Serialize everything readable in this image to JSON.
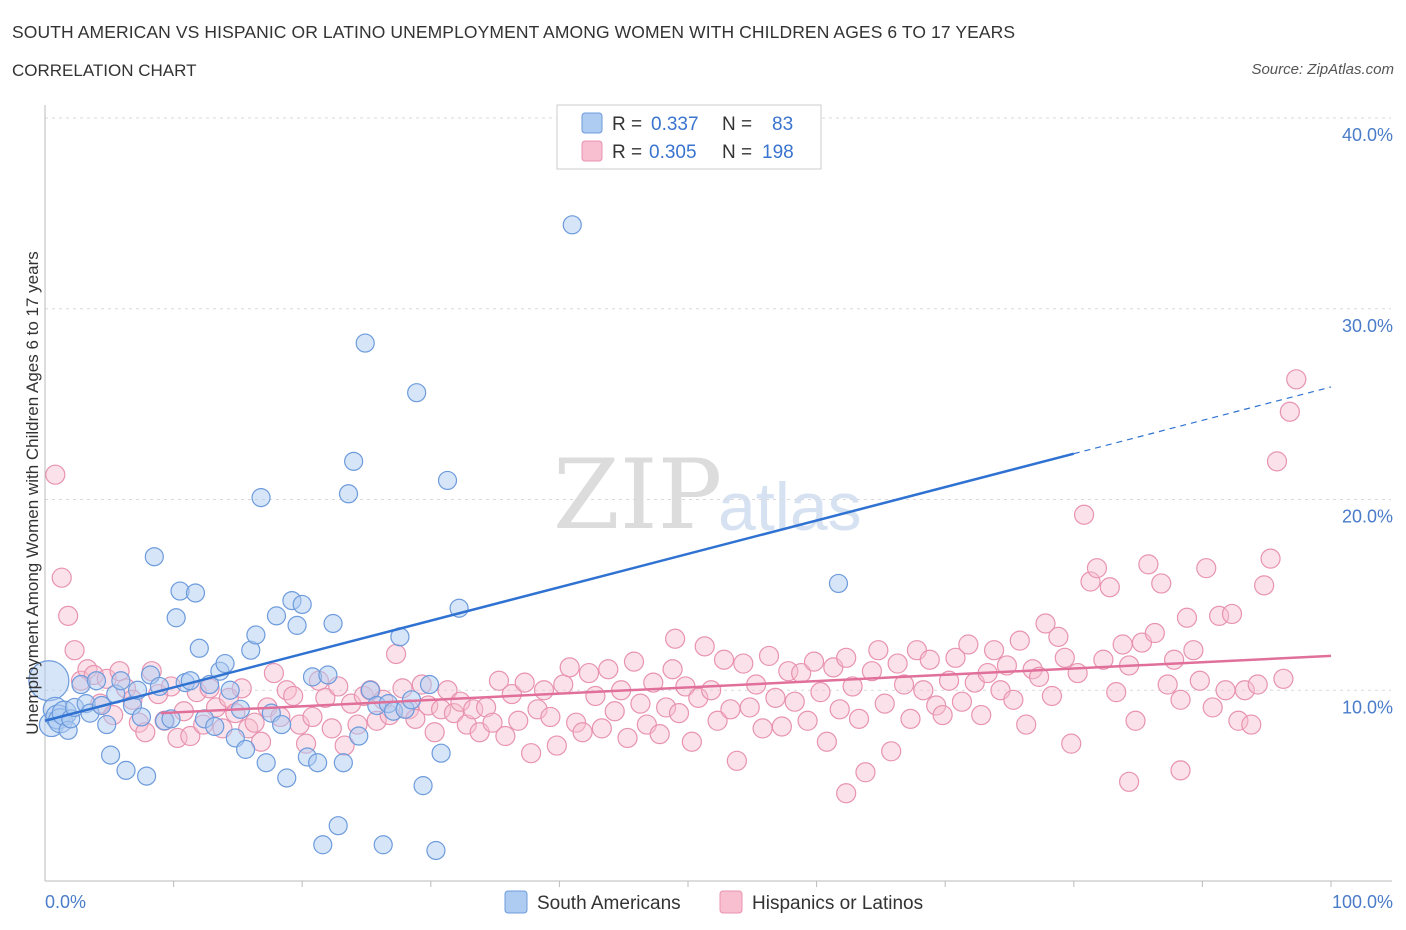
{
  "title": "SOUTH AMERICAN VS HISPANIC OR LATINO UNEMPLOYMENT AMONG WOMEN WITH CHILDREN AGES 6 TO 17 YEARS",
  "subtitle": "CORRELATION CHART",
  "source": "Source: ZipAtlas.com",
  "watermark": {
    "zip": "ZIP",
    "atlas": "atlas"
  },
  "colors": {
    "blue_fill": "#aecbf2",
    "blue_stroke": "#6d9bdc",
    "blue_line": "#2f72d1",
    "pink_fill": "#f7bfd0",
    "pink_stroke": "#e893b0",
    "pink_line": "#e0709a",
    "tick": "#4a7cc9",
    "grid": "#d9d9d9"
  },
  "legend": {
    "rows": [
      {
        "r_label": "R =",
        "r_value": "0.337",
        "n_label": "N =",
        "n_value": "83"
      },
      {
        "r_label": "R =",
        "r_value": "0.305",
        "n_label": "N =",
        "n_value": "198"
      }
    ]
  },
  "chart_data": {
    "type": "scatter",
    "title": "SOUTH AMERICAN VS HISPANIC OR LATINO UNEMPLOYMENT AMONG WOMEN WITH CHILDREN AGES 6 TO 17 YEARS",
    "xlabel": "",
    "ylabel": "Unemployment Among Women with Children Ages 6 to 17 years",
    "xlim": [
      0,
      100
    ],
    "ylim": [
      0,
      40
    ],
    "x_tick_labels": [
      "0.0%",
      "100.0%"
    ],
    "y_ticks": [
      10,
      20,
      30,
      40
    ],
    "y_tick_labels": [
      "10.0%",
      "20.0%",
      "30.0%",
      "40.0%"
    ],
    "grid": true,
    "legend_position": "top-center",
    "series": [
      {
        "name": "South Americans",
        "r": 0.337,
        "n": 83,
        "trend": {
          "x0": 0,
          "y0": 8.4,
          "x1": 80,
          "y1": 22.4,
          "dash_to_x": 100,
          "dash_to_y": 25.9
        },
        "points": [
          [
            0.3,
            10.5
          ],
          [
            0.5,
            8.2
          ],
          [
            0.8,
            9.0
          ],
          [
            1.0,
            8.6
          ],
          [
            1.2,
            8.4
          ],
          [
            1.5,
            8.8
          ],
          [
            1.8,
            7.9
          ],
          [
            2.0,
            8.5
          ],
          [
            2.3,
            9.1
          ],
          [
            2.8,
            10.3
          ],
          [
            3.2,
            9.3
          ],
          [
            3.5,
            8.8
          ],
          [
            4.0,
            10.5
          ],
          [
            4.4,
            9.2
          ],
          [
            4.8,
            8.2
          ],
          [
            5.1,
            6.6
          ],
          [
            5.5,
            9.8
          ],
          [
            5.9,
            10.5
          ],
          [
            6.3,
            5.8
          ],
          [
            6.8,
            9.2
          ],
          [
            7.2,
            10.0
          ],
          [
            7.5,
            8.6
          ],
          [
            7.9,
            5.5
          ],
          [
            8.2,
            10.8
          ],
          [
            8.5,
            17.0
          ],
          [
            8.9,
            10.2
          ],
          [
            9.3,
            8.4
          ],
          [
            9.8,
            8.5
          ],
          [
            10.2,
            13.8
          ],
          [
            10.5,
            15.2
          ],
          [
            10.9,
            10.4
          ],
          [
            11.3,
            10.5
          ],
          [
            11.7,
            15.1
          ],
          [
            12.0,
            12.2
          ],
          [
            12.4,
            8.5
          ],
          [
            12.8,
            10.3
          ],
          [
            13.2,
            8.1
          ],
          [
            13.6,
            11.0
          ],
          [
            14.0,
            11.4
          ],
          [
            14.4,
            10.0
          ],
          [
            14.8,
            7.5
          ],
          [
            15.2,
            9.0
          ],
          [
            15.6,
            6.9
          ],
          [
            16.0,
            12.1
          ],
          [
            16.4,
            12.9
          ],
          [
            16.8,
            20.1
          ],
          [
            17.2,
            6.2
          ],
          [
            17.6,
            8.8
          ],
          [
            18.0,
            13.9
          ],
          [
            18.4,
            8.2
          ],
          [
            18.8,
            5.4
          ],
          [
            19.2,
            14.7
          ],
          [
            19.6,
            13.4
          ],
          [
            20.0,
            14.5
          ],
          [
            20.4,
            6.5
          ],
          [
            20.8,
            10.7
          ],
          [
            21.2,
            6.2
          ],
          [
            21.6,
            1.9
          ],
          [
            22.0,
            10.8
          ],
          [
            22.4,
            13.5
          ],
          [
            22.8,
            2.9
          ],
          [
            23.2,
            6.2
          ],
          [
            23.6,
            20.3
          ],
          [
            24.0,
            22.0
          ],
          [
            24.4,
            7.6
          ],
          [
            24.9,
            28.2
          ],
          [
            25.3,
            10.0
          ],
          [
            25.8,
            9.2
          ],
          [
            26.3,
            1.9
          ],
          [
            26.7,
            9.3
          ],
          [
            27.1,
            8.9
          ],
          [
            27.6,
            12.8
          ],
          [
            28.0,
            9.0
          ],
          [
            28.5,
            9.5
          ],
          [
            28.9,
            25.6
          ],
          [
            29.4,
            5.0
          ],
          [
            29.9,
            10.3
          ],
          [
            30.4,
            1.6
          ],
          [
            30.8,
            6.7
          ],
          [
            31.3,
            21.0
          ],
          [
            41.0,
            34.4
          ],
          [
            32.2,
            14.3
          ],
          [
            61.7,
            15.6
          ]
        ]
      },
      {
        "name": "Hispanics or Latinos",
        "r": 0.305,
        "n": 198,
        "trend": {
          "x0": 9,
          "y0": 8.8,
          "x1": 100,
          "y1": 11.8
        },
        "points": [
          [
            0.8,
            21.3
          ],
          [
            1.3,
            15.9
          ],
          [
            1.8,
            13.9
          ],
          [
            2.3,
            12.1
          ],
          [
            2.8,
            10.5
          ],
          [
            3.3,
            11.1
          ],
          [
            3.8,
            10.8
          ],
          [
            4.3,
            9.3
          ],
          [
            4.8,
            10.6
          ],
          [
            5.3,
            8.7
          ],
          [
            5.8,
            11.0
          ],
          [
            6.3,
            10.1
          ],
          [
            6.8,
            9.5
          ],
          [
            7.3,
            8.3
          ],
          [
            7.8,
            7.8
          ],
          [
            8.3,
            11.0
          ],
          [
            8.8,
            9.8
          ],
          [
            9.3,
            8.4
          ],
          [
            9.8,
            10.2
          ],
          [
            10.3,
            7.5
          ],
          [
            10.8,
            8.9
          ],
          [
            11.3,
            7.6
          ],
          [
            11.8,
            9.9
          ],
          [
            12.3,
            8.2
          ],
          [
            12.8,
            10.1
          ],
          [
            13.3,
            9.1
          ],
          [
            13.8,
            8.0
          ],
          [
            14.3,
            9.6
          ],
          [
            14.8,
            8.8
          ],
          [
            15.3,
            10.1
          ],
          [
            15.8,
            8.0
          ],
          [
            16.3,
            8.3
          ],
          [
            16.8,
            7.3
          ],
          [
            17.3,
            9.1
          ],
          [
            17.8,
            10.9
          ],
          [
            18.3,
            8.6
          ],
          [
            18.8,
            10.0
          ],
          [
            19.3,
            9.7
          ],
          [
            19.8,
            8.2
          ],
          [
            20.3,
            7.2
          ],
          [
            20.8,
            8.6
          ],
          [
            21.3,
            10.5
          ],
          [
            21.8,
            9.6
          ],
          [
            22.3,
            8.0
          ],
          [
            22.8,
            10.2
          ],
          [
            23.3,
            7.1
          ],
          [
            23.8,
            9.3
          ],
          [
            24.3,
            8.2
          ],
          [
            24.8,
            9.7
          ],
          [
            25.3,
            10.0
          ],
          [
            25.8,
            8.4
          ],
          [
            26.3,
            9.5
          ],
          [
            26.8,
            8.7
          ],
          [
            27.3,
            11.9
          ],
          [
            27.8,
            10.1
          ],
          [
            28.3,
            9.0
          ],
          [
            28.8,
            8.5
          ],
          [
            29.3,
            10.3
          ],
          [
            29.8,
            9.2
          ],
          [
            30.3,
            7.8
          ],
          [
            30.8,
            9.0
          ],
          [
            31.3,
            10.0
          ],
          [
            31.8,
            8.8
          ],
          [
            32.3,
            9.4
          ],
          [
            32.8,
            8.2
          ],
          [
            33.3,
            9.0
          ],
          [
            33.8,
            7.8
          ],
          [
            34.3,
            9.1
          ],
          [
            34.8,
            8.3
          ],
          [
            35.3,
            10.5
          ],
          [
            35.8,
            7.6
          ],
          [
            36.3,
            9.8
          ],
          [
            36.8,
            8.4
          ],
          [
            37.3,
            10.4
          ],
          [
            37.8,
            6.7
          ],
          [
            38.3,
            9.0
          ],
          [
            38.8,
            10.0
          ],
          [
            39.3,
            8.6
          ],
          [
            39.8,
            7.1
          ],
          [
            40.3,
            10.3
          ],
          [
            40.8,
            11.2
          ],
          [
            41.3,
            8.3
          ],
          [
            41.8,
            7.8
          ],
          [
            42.3,
            10.9
          ],
          [
            42.8,
            9.7
          ],
          [
            43.3,
            8.0
          ],
          [
            43.8,
            11.1
          ],
          [
            44.3,
            8.9
          ],
          [
            44.8,
            10.0
          ],
          [
            45.3,
            7.5
          ],
          [
            45.8,
            11.5
          ],
          [
            46.3,
            9.3
          ],
          [
            46.8,
            8.2
          ],
          [
            47.3,
            10.4
          ],
          [
            47.8,
            7.7
          ],
          [
            48.3,
            9.1
          ],
          [
            48.8,
            11.1
          ],
          [
            49.3,
            8.8
          ],
          [
            49.8,
            10.2
          ],
          [
            50.3,
            7.3
          ],
          [
            50.8,
            9.6
          ],
          [
            51.3,
            12.3
          ],
          [
            51.8,
            10.0
          ],
          [
            52.3,
            8.4
          ],
          [
            52.8,
            11.6
          ],
          [
            53.3,
            9.0
          ],
          [
            53.8,
            6.3
          ],
          [
            54.3,
            11.4
          ],
          [
            54.8,
            9.1
          ],
          [
            55.3,
            10.3
          ],
          [
            55.8,
            8.0
          ],
          [
            56.3,
            11.8
          ],
          [
            56.8,
            9.6
          ],
          [
            57.3,
            8.1
          ],
          [
            57.8,
            11.0
          ],
          [
            58.3,
            9.4
          ],
          [
            58.8,
            10.9
          ],
          [
            59.3,
            8.4
          ],
          [
            59.8,
            11.5
          ],
          [
            60.3,
            9.9
          ],
          [
            60.8,
            7.3
          ],
          [
            61.3,
            11.2
          ],
          [
            61.8,
            9.0
          ],
          [
            62.3,
            11.7
          ],
          [
            62.8,
            10.2
          ],
          [
            63.3,
            8.5
          ],
          [
            63.8,
            5.7
          ],
          [
            64.3,
            11.0
          ],
          [
            64.8,
            12.1
          ],
          [
            65.3,
            9.3
          ],
          [
            65.8,
            6.8
          ],
          [
            66.3,
            11.4
          ],
          [
            66.8,
            10.3
          ],
          [
            67.3,
            8.5
          ],
          [
            67.8,
            12.1
          ],
          [
            68.3,
            10.0
          ],
          [
            68.8,
            11.6
          ],
          [
            69.3,
            9.2
          ],
          [
            69.8,
            8.7
          ],
          [
            70.3,
            10.5
          ],
          [
            70.8,
            11.7
          ],
          [
            71.3,
            9.4
          ],
          [
            71.8,
            12.4
          ],
          [
            72.3,
            10.4
          ],
          [
            72.8,
            8.7
          ],
          [
            73.3,
            10.9
          ],
          [
            73.8,
            12.1
          ],
          [
            74.3,
            10.0
          ],
          [
            74.8,
            11.3
          ],
          [
            75.3,
            9.5
          ],
          [
            75.8,
            12.6
          ],
          [
            76.3,
            8.2
          ],
          [
            76.8,
            11.1
          ],
          [
            77.3,
            10.7
          ],
          [
            77.8,
            13.5
          ],
          [
            78.3,
            9.7
          ],
          [
            78.8,
            12.8
          ],
          [
            79.3,
            11.7
          ],
          [
            79.8,
            7.2
          ],
          [
            80.3,
            10.9
          ],
          [
            80.8,
            19.2
          ],
          [
            81.3,
            15.7
          ],
          [
            81.8,
            16.4
          ],
          [
            82.3,
            11.6
          ],
          [
            82.8,
            15.4
          ],
          [
            83.3,
            9.9
          ],
          [
            83.8,
            12.4
          ],
          [
            84.3,
            11.3
          ],
          [
            84.8,
            8.4
          ],
          [
            85.3,
            12.5
          ],
          [
            85.8,
            16.6
          ],
          [
            86.3,
            13.0
          ],
          [
            86.8,
            15.6
          ],
          [
            87.3,
            10.3
          ],
          [
            87.8,
            11.6
          ],
          [
            88.3,
            9.5
          ],
          [
            88.8,
            13.8
          ],
          [
            89.3,
            12.1
          ],
          [
            89.8,
            10.5
          ],
          [
            90.3,
            16.4
          ],
          [
            90.8,
            9.1
          ],
          [
            91.3,
            13.9
          ],
          [
            91.8,
            10.0
          ],
          [
            92.3,
            14.0
          ],
          [
            92.8,
            8.4
          ],
          [
            93.3,
            10.0
          ],
          [
            93.8,
            8.2
          ],
          [
            94.3,
            10.3
          ],
          [
            94.8,
            15.5
          ],
          [
            95.3,
            16.9
          ],
          [
            95.8,
            22.0
          ],
          [
            96.3,
            10.6
          ],
          [
            96.8,
            24.6
          ],
          [
            97.3,
            26.3
          ],
          [
            49.0,
            12.7
          ],
          [
            62.3,
            4.6
          ],
          [
            84.3,
            5.2
          ],
          [
            88.3,
            5.8
          ]
        ]
      }
    ]
  }
}
